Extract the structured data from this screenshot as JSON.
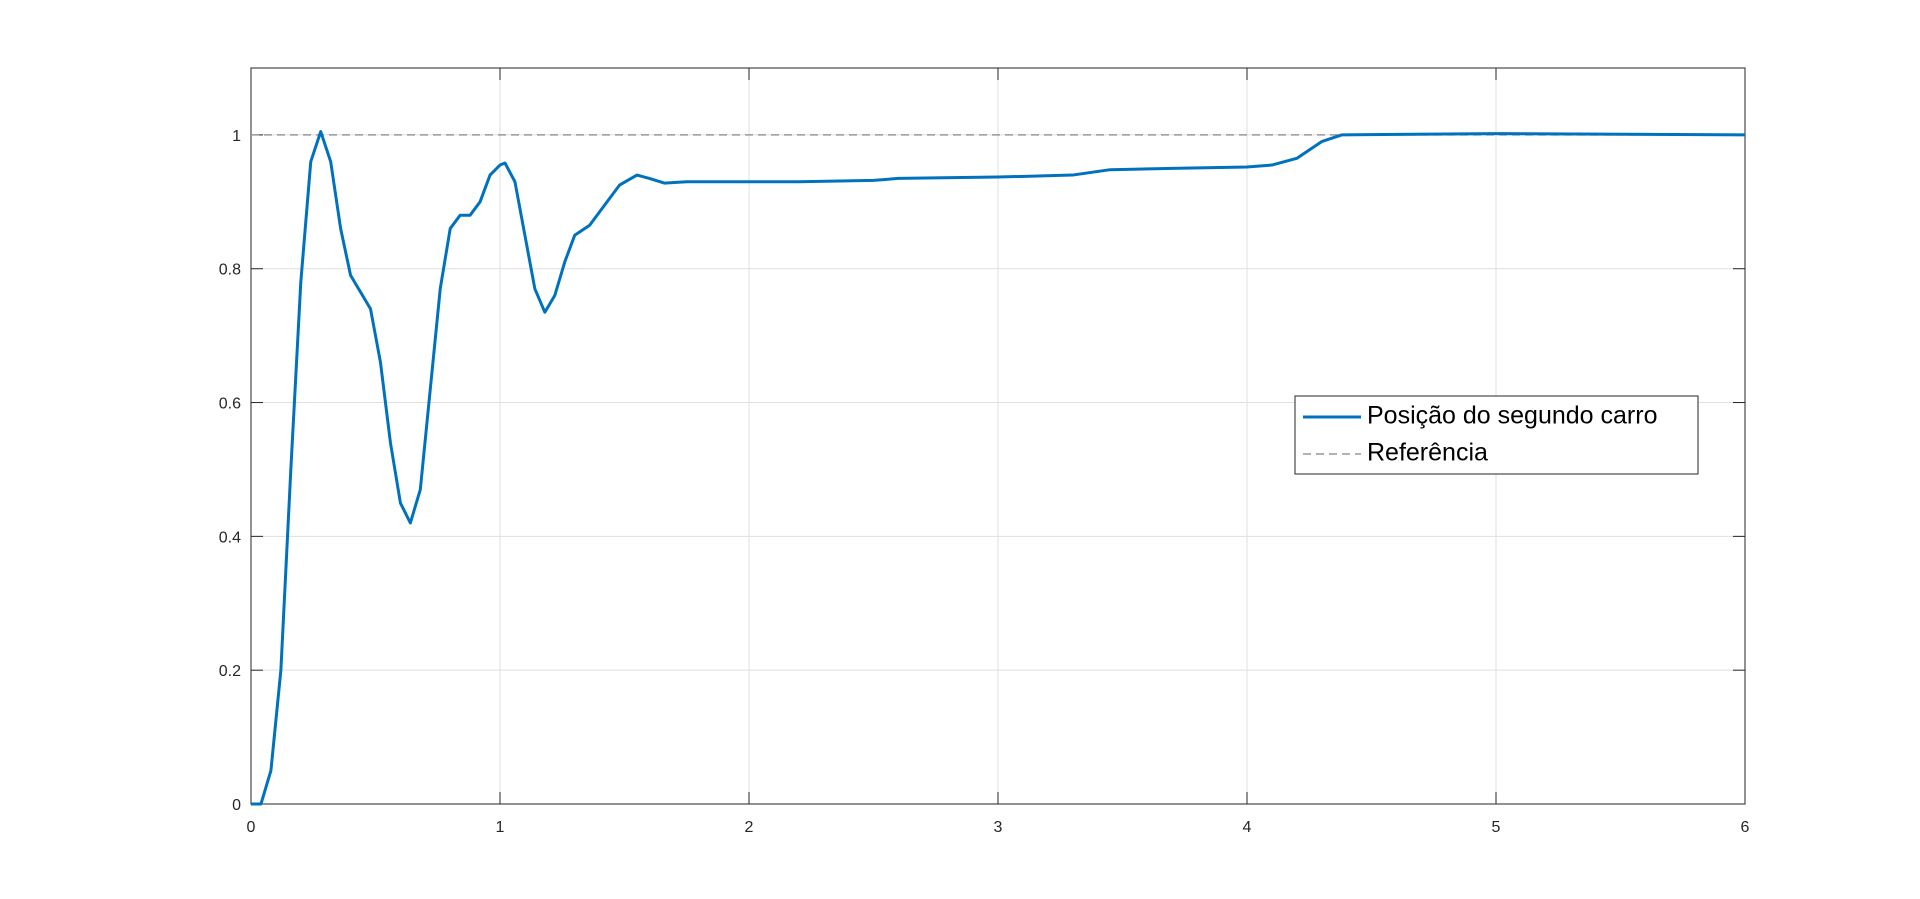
{
  "chart_data": {
    "type": "line",
    "series": [
      {
        "name": "Posição do segundo carro",
        "color": "#0072bd",
        "dash": false,
        "x": [
          0,
          0.04,
          0.08,
          0.12,
          0.16,
          0.2,
          0.24,
          0.28,
          0.32,
          0.36,
          0.4,
          0.44,
          0.48,
          0.52,
          0.56,
          0.6,
          0.64,
          0.68,
          0.72,
          0.76,
          0.8,
          0.84,
          0.88,
          0.92,
          0.96,
          1.0,
          1.02,
          1.06,
          1.1,
          1.14,
          1.18,
          1.22,
          1.26,
          1.3,
          1.36,
          1.42,
          1.48,
          1.55,
          1.6,
          1.66,
          1.75,
          2.0,
          2.2,
          2.5,
          2.6,
          3.0,
          3.3,
          3.45,
          3.7,
          4.0,
          4.1,
          4.2,
          4.3,
          4.38,
          5.0,
          6.0
        ],
        "values": [
          0,
          0,
          0.05,
          0.2,
          0.5,
          0.78,
          0.96,
          1.005,
          0.96,
          0.86,
          0.79,
          0.765,
          0.74,
          0.66,
          0.54,
          0.45,
          0.42,
          0.47,
          0.62,
          0.77,
          0.86,
          0.88,
          0.88,
          0.9,
          0.94,
          0.955,
          0.958,
          0.93,
          0.85,
          0.77,
          0.735,
          0.76,
          0.81,
          0.85,
          0.865,
          0.895,
          0.925,
          0.94,
          0.935,
          0.928,
          0.93,
          0.93,
          0.93,
          0.932,
          0.935,
          0.937,
          0.94,
          0.948,
          0.95,
          0.952,
          0.955,
          0.965,
          0.99,
          1.0,
          1.002,
          1.0
        ]
      },
      {
        "name": "Referência",
        "color": "#999999",
        "dash": true,
        "x": [
          0,
          6
        ],
        "values": [
          1,
          1
        ]
      }
    ],
    "xlim": [
      0,
      6
    ],
    "xticks": [
      0,
      1,
      2,
      3,
      4,
      5,
      6
    ],
    "ylim": [
      0,
      1.1
    ],
    "yticks": [
      0,
      0.2,
      0.4,
      0.6,
      0.8,
      1
    ],
    "grid": true,
    "legend": "right"
  }
}
